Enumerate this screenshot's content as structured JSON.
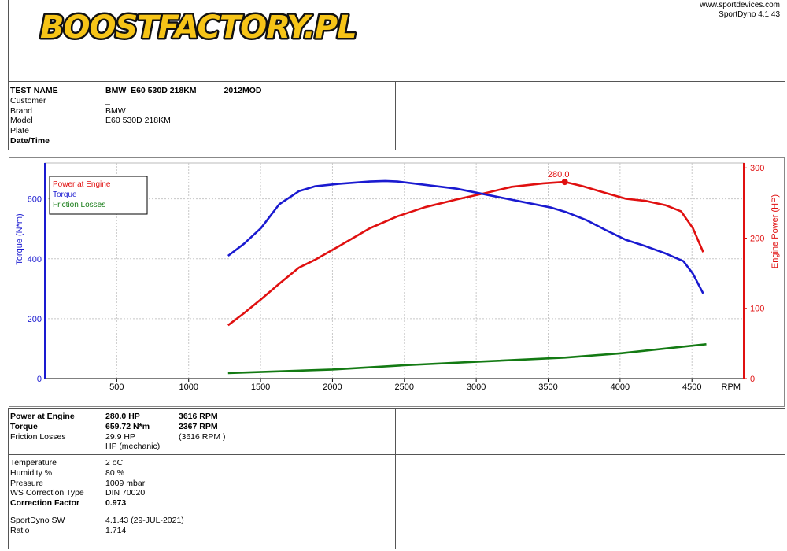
{
  "header": {
    "logo_bold": "BOOST",
    "logo_rest": "FACTORY.PL",
    "website": "www.sportdevices.com",
    "software": "SportDyno 4.1.43"
  },
  "info": {
    "rows": [
      {
        "label": "TEST NAME",
        "value": "BMW_E60 530D 218KM______2012MOD",
        "bold": true
      },
      {
        "label": "Customer",
        "value": "_"
      },
      {
        "label": "Brand",
        "value": "BMW"
      },
      {
        "label": "Model",
        "value": "E60 530D 218KM"
      },
      {
        "label": "Plate"
      },
      {
        "label": "Date/Time",
        "bold": true
      }
    ]
  },
  "chart_data": {
    "type": "line",
    "x_label": "RPM",
    "y_label": "Torque (N*m)",
    "y2_label": "Engine Power (HP)",
    "xlim": [
      0,
      4860
    ],
    "xticks": [
      500,
      1000,
      1500,
      2000,
      2500,
      3000,
      3500,
      4000,
      4500
    ],
    "ylim": [
      0,
      720
    ],
    "yticks": [
      0,
      200,
      400,
      600
    ],
    "y2lim": [
      0,
      307
    ],
    "y2ticks": [
      0,
      100,
      200,
      300
    ],
    "grid": true,
    "legend": "top-left",
    "series": [
      {
        "name": "Power at Engine",
        "color": "#e01010",
        "axis": "y2",
        "x": [
          1274,
          1384,
          1504,
          1630,
          1767,
          1877,
          2041,
          2260,
          2452,
          2644,
          2863,
          3082,
          3247,
          3466,
          3616,
          3740,
          3904,
          4041,
          4178,
          4315,
          4425,
          4507,
          4578
        ],
        "values": [
          76,
          93,
          113,
          135,
          158,
          169,
          188,
          214,
          231,
          244,
          255,
          265,
          273,
          278,
          280,
          274,
          264,
          256,
          253,
          247,
          238,
          214,
          180
        ]
      },
      {
        "name": "Torque",
        "color": "#1a1ad0",
        "axis": "y",
        "x": [
          1274,
          1384,
          1504,
          1630,
          1767,
          1877,
          2041,
          2260,
          2367,
          2452,
          2644,
          2863,
          3082,
          3301,
          3521,
          3630,
          3767,
          3904,
          4041,
          4178,
          4315,
          4441,
          4507,
          4578
        ],
        "values": [
          410,
          450,
          503,
          582,
          626,
          642,
          650,
          658,
          659.72,
          658,
          647,
          634,
          613,
          592,
          571,
          555,
          529,
          495,
          463,
          442,
          418,
          392,
          350,
          284
        ]
      },
      {
        "name": "Friction Losses",
        "color": "#137a13",
        "axis": "y2",
        "x": [
          1274,
          2000,
          2500,
          3000,
          3616,
          4000,
          4600
        ],
        "values": [
          8,
          13,
          19,
          24,
          29.9,
          36,
          49
        ]
      }
    ],
    "annotations": [
      {
        "text": "280.0",
        "x": 3616,
        "y": 280,
        "axis": "y2"
      }
    ]
  },
  "results": {
    "rows": [
      {
        "label": "Power at Engine",
        "value": "280.0 HP",
        "extra": "3616 RPM",
        "bold": true
      },
      {
        "label": "Torque",
        "value": "659.72 N*m",
        "extra": "2367 RPM",
        "bold": true
      },
      {
        "label": "Friction Losses",
        "value": "29.9 HP",
        "extra": "(3616 RPM )"
      },
      {
        "value": "HP (mechanic)"
      }
    ]
  },
  "conditions": {
    "rows": [
      {
        "label": "Temperature",
        "value": "2 oC"
      },
      {
        "label": "Humidity %",
        "value": "80 %"
      },
      {
        "label": "Pressure",
        "value": "1009 mbar"
      },
      {
        "label": "WS Correction Type",
        "value": "DIN 70020"
      },
      {
        "label": "Correction Factor",
        "value": "0.973",
        "bold": true
      }
    ]
  },
  "software": {
    "rows": [
      {
        "label": "SportDyno SW",
        "value": "4.1.43 (29-JUL-2021)"
      },
      {
        "label": "Ratio",
        "value": "1.714"
      }
    ]
  }
}
